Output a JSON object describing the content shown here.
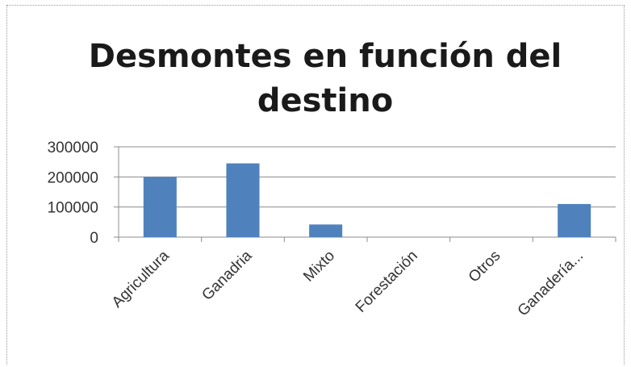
{
  "chart_data": {
    "type": "bar",
    "title_lines": [
      "Desmontes en función del",
      "destino"
    ],
    "categories": [
      "Agricultura",
      "Ganadria",
      "Mixto",
      "Forestación",
      "Otros",
      "Ganadería..."
    ],
    "values": [
      200000,
      245000,
      42000,
      0,
      0,
      110000
    ],
    "yticks": [
      "0",
      "100000",
      "200000",
      "300000"
    ],
    "ylim": [
      0,
      300000
    ],
    "grid": true,
    "legend": "none",
    "bar_color": "#4f81bd",
    "grid_color": "#8c8c8c"
  }
}
